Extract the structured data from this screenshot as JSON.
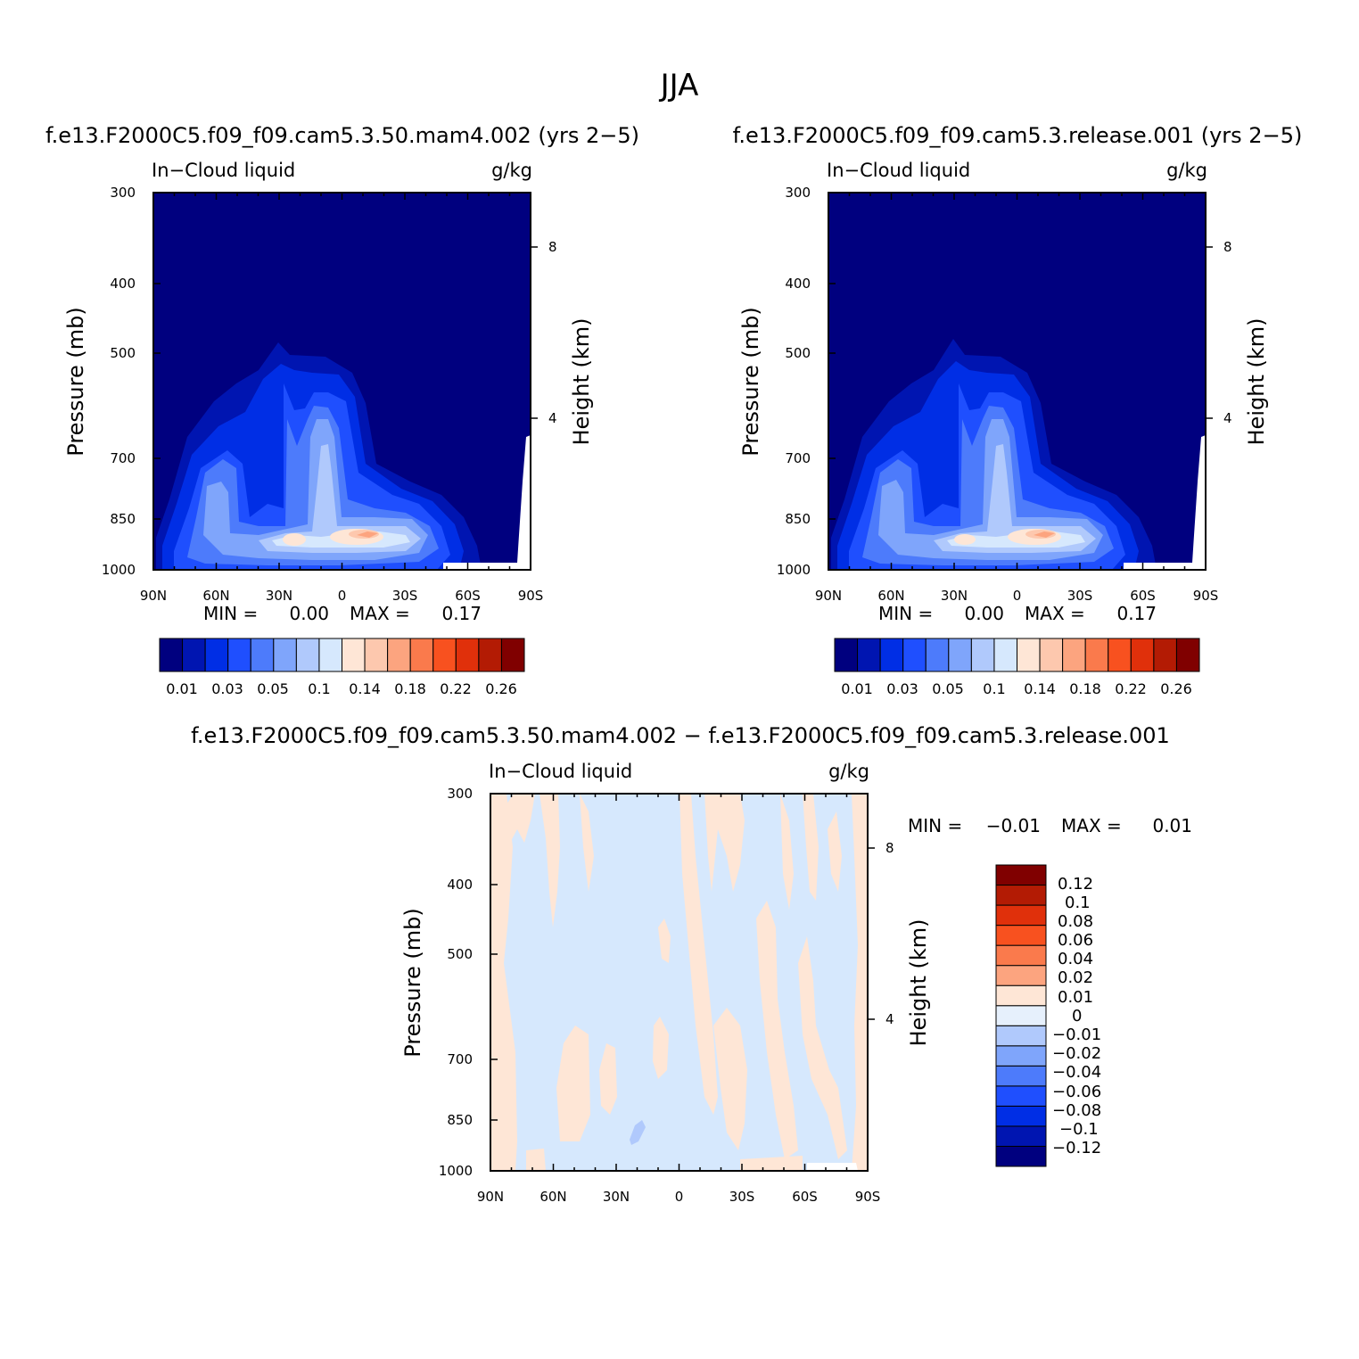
{
  "figure_title": "JJA",
  "colors": {
    "abs_levels": [
      "#00007f",
      "#0015b1",
      "#002ee5",
      "#1f4ffe",
      "#4d7bfb",
      "#7fa5fb",
      "#b0c9fc",
      "#d6e8fd",
      "#fee6d6",
      "#fdc8ae",
      "#fca47f",
      "#fa7a4c",
      "#f8511f",
      "#e0300b",
      "#b31b04",
      "#800000"
    ],
    "diff_levels": [
      "#00007f",
      "#0015b1",
      "#002ee5",
      "#1f4ffe",
      "#4d7bfb",
      "#7fa5fb",
      "#b0c9fc",
      "#e6f0fc",
      "#fee6d6",
      "#fca47f",
      "#fa7a4c",
      "#f8511f",
      "#e0300b",
      "#b31b04",
      "#800000"
    ]
  },
  "chart_data": [
    {
      "type": "contour",
      "title": "f.e13.F2000C5.f09_f09.cam5.3.50.mam4.002 (yrs 2−5)",
      "variable": "In−Cloud liquid",
      "units": "g/kg",
      "ylabel": "Pressure (mb)",
      "ylabel_right": "Height (km)",
      "x_ticks": [
        "90N",
        "60N",
        "30N",
        "0",
        "30S",
        "60S",
        "90S"
      ],
      "y_ticks": [
        "300",
        "400",
        "500",
        "700",
        "850",
        "1000"
      ],
      "y_right_ticks": [
        "8",
        "4"
      ],
      "min_label": "MIN =",
      "min_value": "0.00",
      "max_label": "MAX =",
      "max_value": "0.17",
      "colorbar_labels": [
        "0.01",
        "0.03",
        "0.05",
        "0.1",
        "0.14",
        "0.18",
        "0.22",
        "0.26"
      ]
    },
    {
      "type": "contour",
      "title": "f.e13.F2000C5.f09_f09.cam5.3.release.001 (yrs 2−5)",
      "variable": "In−Cloud liquid",
      "units": "g/kg",
      "ylabel": "Pressure (mb)",
      "ylabel_right": "Height (km)",
      "x_ticks": [
        "90N",
        "60N",
        "30N",
        "0",
        "30S",
        "60S",
        "90S"
      ],
      "y_ticks": [
        "300",
        "400",
        "500",
        "700",
        "850",
        "1000"
      ],
      "y_right_ticks": [
        "8",
        "4"
      ],
      "min_label": "MIN =",
      "min_value": "0.00",
      "max_label": "MAX =",
      "max_value": "0.17",
      "colorbar_labels": [
        "0.01",
        "0.03",
        "0.05",
        "0.1",
        "0.14",
        "0.18",
        "0.22",
        "0.26"
      ]
    },
    {
      "type": "contour",
      "title": "f.e13.F2000C5.f09_f09.cam5.3.50.mam4.002 − f.e13.F2000C5.f09_f09.cam5.3.release.001",
      "variable": "In−Cloud liquid",
      "units": "g/kg",
      "ylabel": "Pressure (mb)",
      "ylabel_right": "Height (km)",
      "x_ticks": [
        "90N",
        "60N",
        "30N",
        "0",
        "30S",
        "60S",
        "90S"
      ],
      "y_ticks": [
        "300",
        "400",
        "500",
        "700",
        "850",
        "1000"
      ],
      "y_right_ticks": [
        "8",
        "4"
      ],
      "min_label": "MIN =",
      "min_value": "−0.01",
      "max_label": "MAX =",
      "max_value": "0.01",
      "colorbar_labels": [
        "0.12",
        "0.1",
        "0.08",
        "0.06",
        "0.04",
        "0.02",
        "0.01",
        "0",
        "−0.01",
        "−0.02",
        "−0.04",
        "−0.06",
        "−0.08",
        "−0.1",
        "−0.12"
      ]
    }
  ]
}
